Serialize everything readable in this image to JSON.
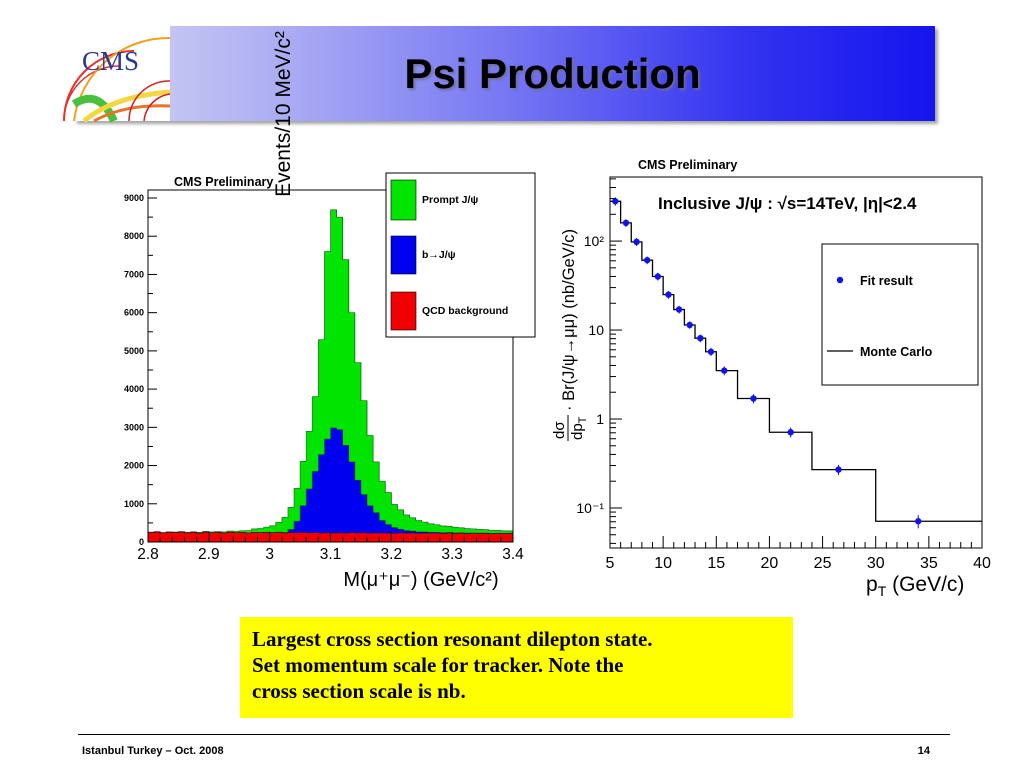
{
  "header": {
    "title": "Psi Production",
    "logo_text": "CMS"
  },
  "colors": {
    "header_blue": "#1515ee",
    "caption_background": "#ffff00"
  },
  "chart_data": [
    {
      "type": "bar",
      "stacked": true,
      "title": "CMS Preliminary",
      "xlabel": "M(μ⁺μ⁻) (GeV/c²)",
      "ylabel": "Events/10 MeV/c²",
      "xlim": [
        2.8,
        3.4
      ],
      "ylim": [
        0,
        9000
      ],
      "bin_width": 0.01,
      "x_ticks": [
        "2.8",
        "2.9",
        "3",
        "3.1",
        "3.2",
        "3.3",
        "3.4"
      ],
      "y_ticks": [
        "0",
        "1000",
        "2000",
        "3000",
        "4000",
        "5000",
        "6000",
        "7000",
        "8000",
        "9000"
      ],
      "legend_position": "top-right",
      "series": [
        {
          "name": "Prompt J/ψ",
          "color": "#00e400",
          "values": [
            10,
            10,
            12,
            12,
            14,
            14,
            16,
            16,
            18,
            20,
            22,
            24,
            28,
            32,
            38,
            46,
            60,
            90,
            110,
            140,
            180,
            260,
            400,
            580,
            860,
            1160,
            1510,
            1960,
            3010,
            4910,
            5710,
            5560,
            4860,
            3910,
            3080,
            2460,
            1840,
            1330,
            1030,
            840,
            610,
            510,
            410,
            350,
            300,
            260,
            225,
            200,
            180,
            165,
            145,
            130,
            118,
            108,
            98,
            90,
            82,
            74,
            68,
            62
          ]
        },
        {
          "name": "b→J/ψ",
          "color": "#0000f0",
          "values": [
            0,
            0,
            0,
            0,
            0,
            0,
            0,
            0,
            0,
            0,
            0,
            0,
            0,
            0,
            0,
            0,
            0,
            0,
            0,
            0,
            5,
            8,
            10,
            80,
            300,
            700,
            1150,
            1600,
            2050,
            2450,
            2750,
            2700,
            2300,
            1850,
            1380,
            1000,
            720,
            530,
            330,
            220,
            150,
            100,
            70,
            50,
            40,
            30,
            25,
            22,
            20,
            18,
            15,
            14,
            12,
            10,
            9,
            8,
            7,
            6,
            5,
            5
          ]
        },
        {
          "name": "QCD background",
          "color": "#f00000",
          "values": [
            250,
            262,
            238,
            255,
            247,
            260,
            241,
            252,
            236,
            258,
            244,
            250,
            239,
            256,
            243,
            249,
            237,
            254,
            245,
            251,
            240,
            248,
            236,
            246,
            242,
            250,
            238,
            244,
            236,
            241,
            233,
            239,
            230,
            243,
            235,
            240,
            228,
            237,
            231,
            236,
            226,
            234,
            229,
            235,
            224,
            232,
            227,
            231,
            222,
            230,
            225,
            228,
            220,
            227,
            223,
            226,
            218,
            224,
            221,
            225
          ]
        }
      ]
    },
    {
      "type": "scatter",
      "title": "CMS Preliminary",
      "annotation": "Inclusive J/ψ : √s=14TeV, |η|<2.4",
      "xlabel": "p",
      "xlabel_sub": "T",
      "xlabel_unit": " (GeV/c)",
      "ylabel_num": "dσ",
      "ylabel_den": "dp",
      "ylabel_den_sub": "T",
      "ylabel": "· Br(J/ψ→μμ) (nb/GeV/c)",
      "xlim": [
        5,
        40
      ],
      "ylim": [
        0.0355,
        525
      ],
      "yscale": "log",
      "x_ticks": [
        5,
        10,
        15,
        20,
        25,
        30,
        35,
        40
      ],
      "x_tick_labels": [
        "5",
        "10",
        "15",
        "20",
        "25",
        "30",
        "35",
        "40"
      ],
      "y_ticks": [
        0.1,
        1,
        10,
        100
      ],
      "y_tick_labels": [
        "10⁻¹",
        "1",
        "10",
        "10²"
      ],
      "legend_position": "top-right",
      "series": [
        {
          "name": "Fit result",
          "color": "#1212ea",
          "marker": "circle",
          "x": [
            5.5,
            6.5,
            7.5,
            8.5,
            9.5,
            10.5,
            11.5,
            12.5,
            13.5,
            14.5,
            15.75,
            18.5,
            22,
            26.5,
            34
          ],
          "y": [
            280,
            160,
            98,
            61,
            40,
            25,
            17,
            11.4,
            8.1,
            5.7,
            3.5,
            1.7,
            0.71,
            0.27,
            0.071
          ],
          "yerr": [
            30,
            16,
            10,
            6,
            4,
            2.5,
            1.7,
            1.1,
            0.8,
            0.6,
            0.4,
            0.2,
            0.09,
            0.035,
            0.012
          ]
        },
        {
          "name": "Monte Carlo",
          "color": "#000000",
          "bin_edges": [
            5,
            6,
            7,
            8,
            9,
            10,
            11,
            12,
            13,
            14,
            15,
            17,
            20,
            24,
            30,
            40
          ],
          "values": [
            280,
            160,
            98,
            61,
            40,
            25,
            17,
            11.4,
            8.1,
            5.7,
            3.5,
            1.7,
            0.71,
            0.27,
            0.071
          ]
        }
      ]
    }
  ],
  "caption": {
    "lines": [
      "Largest cross section resonant dilepton state.",
      "Set momentum scale for tracker. Note the",
      "cross section scale is nb."
    ]
  },
  "footer": {
    "left": "Istanbul Turkey – Oct. 2008",
    "page": "14"
  }
}
